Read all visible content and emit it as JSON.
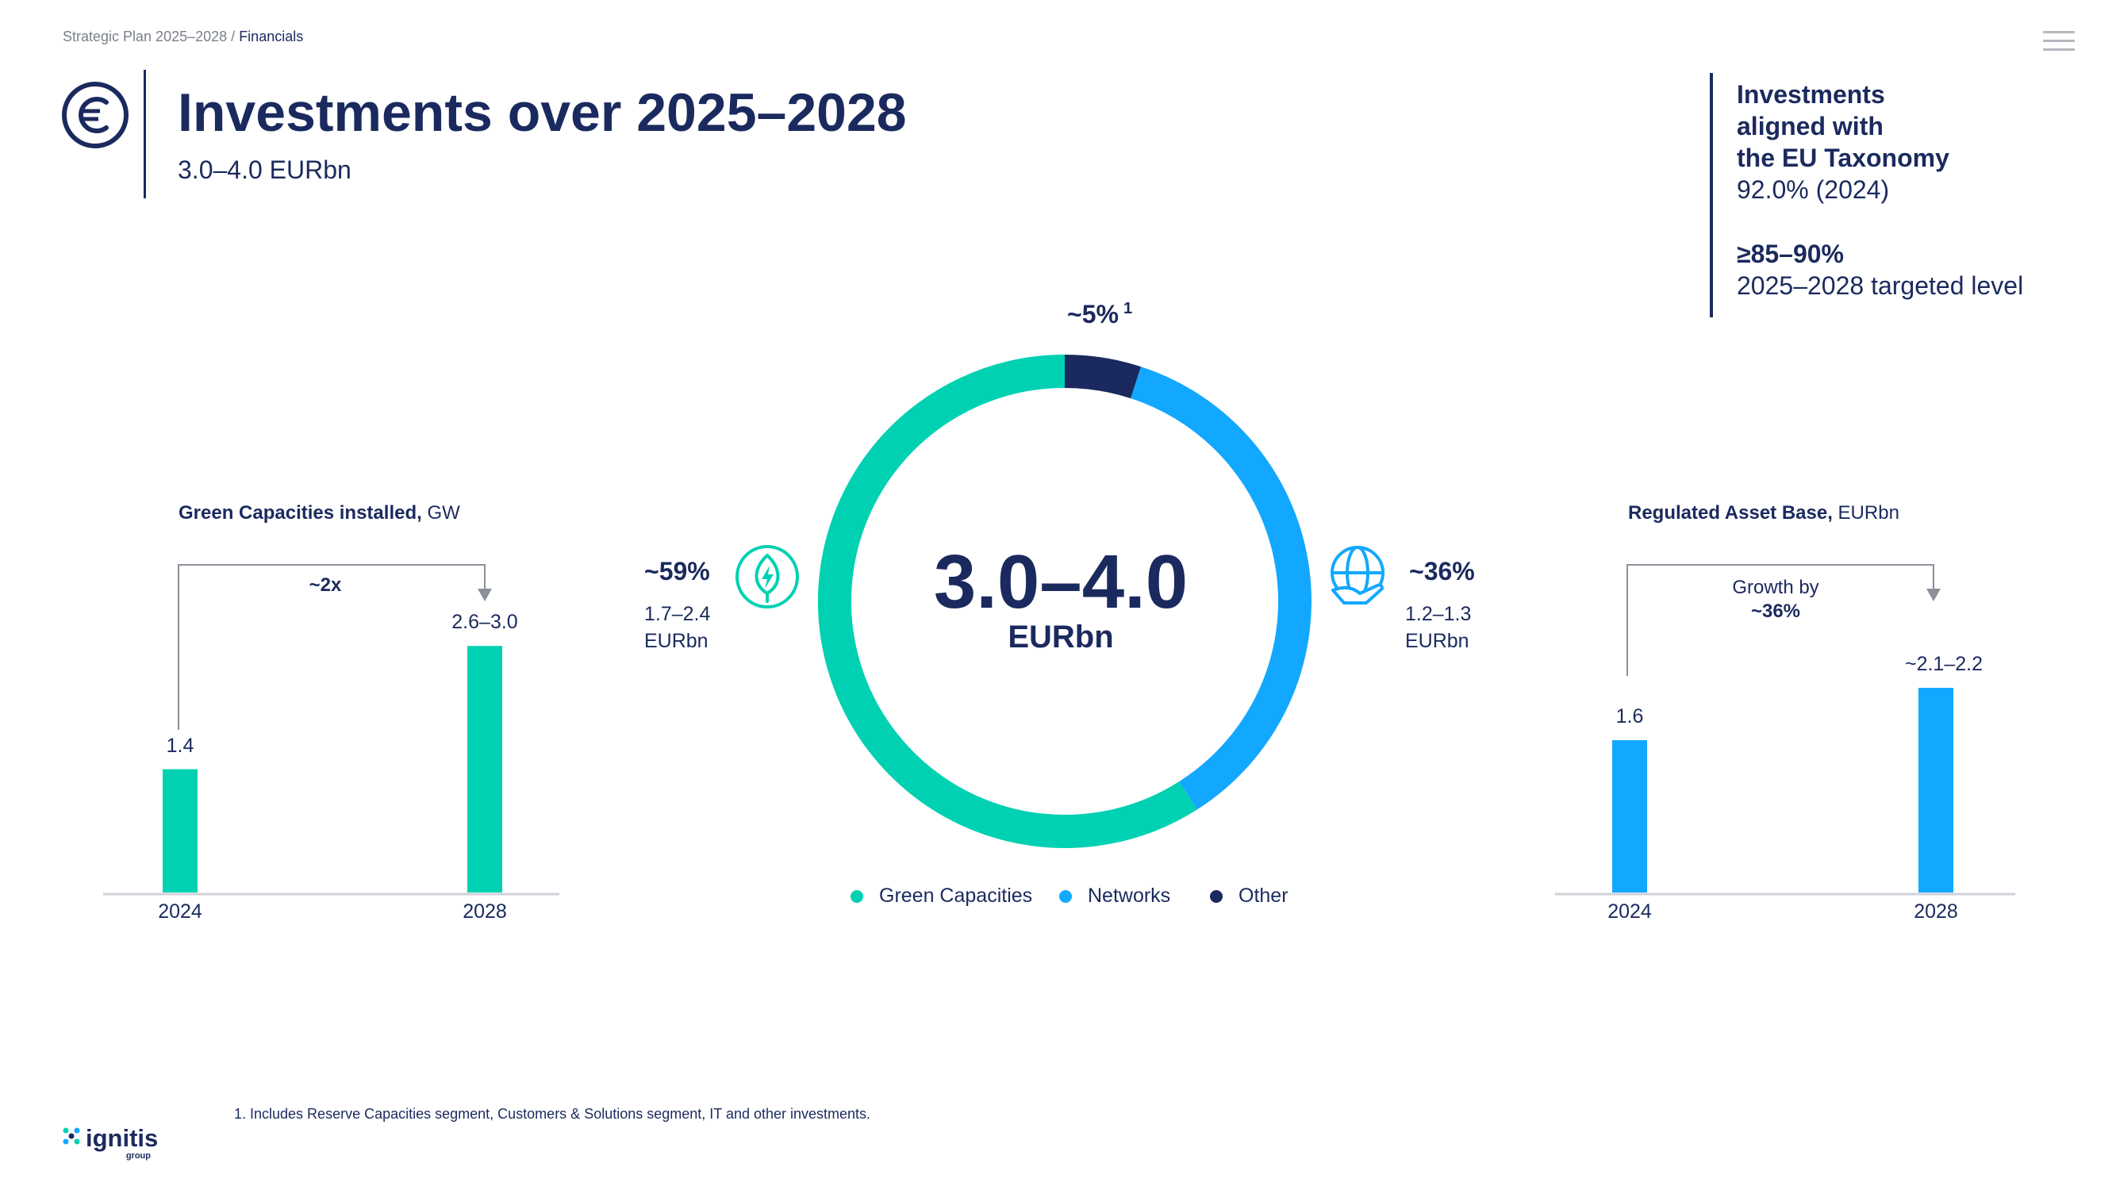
{
  "breadcrumb": {
    "parent": "Strategic Plan 2025–2028",
    "separator": " / ",
    "current": "Financials"
  },
  "header": {
    "title": "Investments over 2025–2028",
    "subtitle": "3.0–4.0 EURbn",
    "icon": "euro-circle-icon"
  },
  "taxonomy": {
    "line1": "Investments",
    "line2": "aligned with",
    "line3": "the EU Taxonomy",
    "actual": "92.0% (2024)",
    "target_value": "≥85–90%",
    "target_label": "2025–2028 targeted level"
  },
  "colors": {
    "navy": "#1b2a5e",
    "green": "#00d1b2",
    "blue": "#13a8ff",
    "axis": "#cfd2d8",
    "arrow": "#8c9099"
  },
  "chart_data": [
    {
      "type": "bar",
      "title": "Green Capacities installed,",
      "unit": "GW",
      "categories": [
        "2024",
        "2028"
      ],
      "values": [
        1.4,
        2.8
      ],
      "value_labels": [
        "1.4",
        "2.6–3.0"
      ],
      "annotation": "~2x",
      "color": "#00d1b2"
    },
    {
      "type": "pie",
      "center_value": "3.0–4.0",
      "center_unit": "EURbn",
      "series": [
        {
          "name": "Green Capacities",
          "share": 59,
          "label": "~59%",
          "range": "1.7–2.4",
          "unit": "EURbn",
          "icon": "leaf-bolt-icon",
          "color": "#00d1b2"
        },
        {
          "name": "Networks",
          "share": 36,
          "label": "~36%",
          "range": "1.2–1.3",
          "unit": "EURbn",
          "icon": "globe-hand-icon",
          "color": "#13a8ff"
        },
        {
          "name": "Other",
          "share": 5,
          "label": "~5%",
          "footnote_ref": "1",
          "color": "#1b2a5e"
        }
      ]
    },
    {
      "type": "bar",
      "title": "Regulated Asset Base,",
      "unit": "EURbn",
      "categories": [
        "2024",
        "2028"
      ],
      "values": [
        1.6,
        2.15
      ],
      "value_labels": [
        "1.6",
        "~2.1–2.2"
      ],
      "annotation_line1": "Growth by",
      "annotation_line2": "~36%",
      "color": "#13a8ff"
    }
  ],
  "footnote": "1. Includes Reserve Capacities segment, Customers & Solutions segment, IT and other investments.",
  "logo": {
    "name": "ignitis",
    "sub": "group"
  }
}
